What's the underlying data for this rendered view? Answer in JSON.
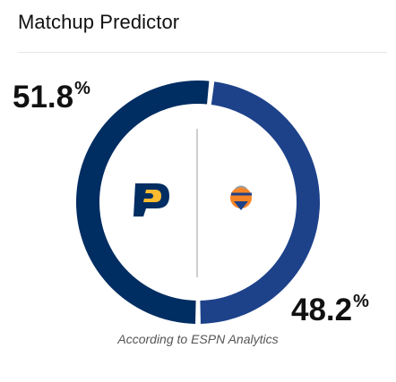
{
  "widget": {
    "title": "Matchup Predictor"
  },
  "home_team": {
    "logo_letter": "P",
    "win_probability": 51.8,
    "win_probability_number": "51.8",
    "percent_sign": "%",
    "color": "#002D62",
    "logo_icon": "pacers-logo-icon"
  },
  "away_team": {
    "win_probability": 48.2,
    "win_probability_number": "48.2",
    "percent_sign": "%",
    "color": "#1D428A",
    "logo_icon": "knicks-logo-icon"
  },
  "footer": {
    "source": "According to ESPN Analytics"
  }
}
